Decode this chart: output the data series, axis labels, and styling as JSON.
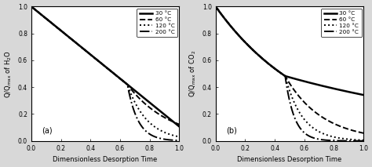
{
  "ylabel_a": "Q/Q$_\\mathregular{max}$ of H$_2$O",
  "ylabel_b": "Q/Q$_\\mathregular{max}$ of CO$_2$",
  "xlabel": "Dimensionless Desorption Time",
  "legend_labels": [
    "30 °C",
    "60 °C",
    "120 °C",
    "200 °C"
  ],
  "linestyles": [
    "-",
    "--",
    ":",
    "-."
  ],
  "linewidths": [
    1.8,
    1.4,
    1.4,
    1.4
  ],
  "panel_a_label": "(a)",
  "panel_b_label": "(b)",
  "xlim": [
    0,
    1
  ],
  "ylim": [
    0,
    1
  ],
  "xticks": [
    0,
    0.2,
    0.4,
    0.6,
    0.8,
    1.0
  ],
  "yticks": [
    0.0,
    0.2,
    0.4,
    0.6,
    0.8,
    1.0
  ],
  "fig_bg": "#d8d8d8",
  "ax_bg": "white",
  "tick_fontsize": 5.5,
  "label_fontsize": 6.0,
  "legend_fontsize": 5.2,
  "panel_a_break": 0.65,
  "panel_a_v0": 0.42,
  "panel_a_slope": 0.8769,
  "panel_b_break": 0.47,
  "panel_b_k0": 1.55,
  "panel_a_k60": 3.5,
  "panel_a_k120": 7.5,
  "panel_a_k200": 14.0,
  "panel_b_k30_after": 0.65,
  "panel_b_k60": 4.0,
  "panel_b_k120": 8.5,
  "panel_b_k200": 16.0,
  "panel_a_30_slope": 0.75
}
